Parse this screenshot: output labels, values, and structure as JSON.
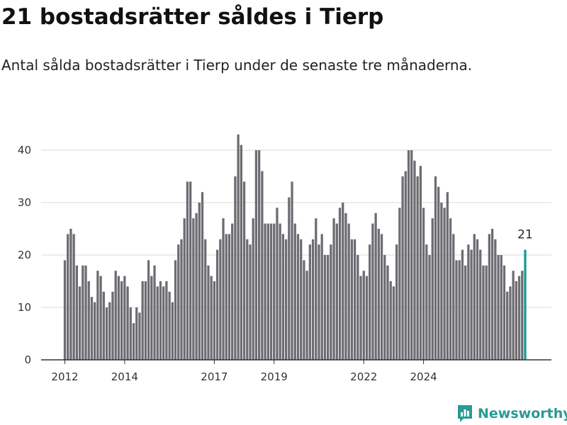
{
  "header": {
    "title": "21 bostadsrätter såldes i Tierp",
    "subtitle": "Antal sålda bostadsrätter i Tierp under de senaste tre månaderna."
  },
  "brand": {
    "name": "Newsworthy"
  },
  "colors": {
    "bar": "#6d6c72",
    "highlight": "#1a9a90",
    "grid": "#d9d9d9",
    "axis": "#333333",
    "brand": "#2a9a92"
  },
  "chart_data": {
    "type": "bar",
    "title": "21 bostadsrätter såldes i Tierp",
    "xlabel": "",
    "ylabel": "",
    "ylim": [
      0,
      45
    ],
    "yticks": [
      0,
      10,
      20,
      30,
      40
    ],
    "xtick_labels": [
      "2012",
      "2014",
      "2017",
      "2019",
      "2022",
      "2024"
    ],
    "xtick_bar_index": [
      0,
      20,
      50,
      70,
      100,
      120
    ],
    "highlight_label": "21",
    "grid": true,
    "series": [
      {
        "name": "Antal sålda bostadsrätter",
        "values": [
          19,
          24,
          25,
          24,
          18,
          14,
          18,
          18,
          15,
          12,
          11,
          17,
          16,
          13,
          10,
          11,
          13,
          17,
          16,
          15,
          16,
          14,
          10,
          7,
          10,
          9,
          15,
          15,
          19,
          16,
          18,
          14,
          15,
          14,
          15,
          13,
          11,
          19,
          22,
          23,
          27,
          34,
          34,
          27,
          28,
          30,
          32,
          23,
          18,
          16,
          15,
          21,
          23,
          27,
          24,
          24,
          26,
          35,
          43,
          41,
          34,
          23,
          22,
          27,
          40,
          40,
          36,
          26,
          26,
          26,
          26,
          29,
          26,
          24,
          23,
          31,
          34,
          26,
          24,
          23,
          19,
          17,
          22,
          23,
          27,
          22,
          24,
          20,
          20,
          22,
          27,
          26,
          29,
          30,
          28,
          26,
          23,
          23,
          20,
          16,
          17,
          16,
          22,
          26,
          28,
          25,
          24,
          20,
          18,
          15,
          14,
          22,
          29,
          35,
          36,
          40,
          40,
          38,
          35,
          37,
          29,
          22,
          20,
          27,
          35,
          33,
          30,
          29,
          32,
          27,
          24,
          19,
          19,
          21,
          18,
          22,
          21,
          24,
          23,
          21,
          18,
          18,
          24,
          25,
          23,
          20,
          20,
          18,
          13,
          14,
          17,
          15,
          16,
          17,
          21
        ]
      }
    ]
  }
}
